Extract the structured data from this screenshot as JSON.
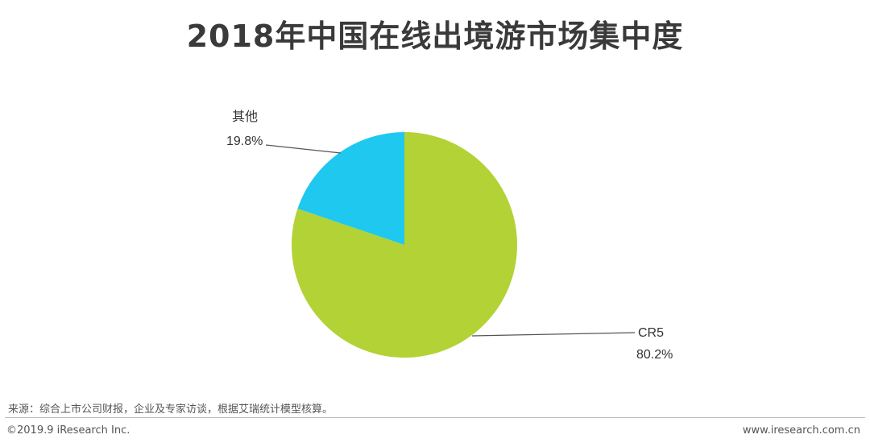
{
  "title": "2018年中国在线出境游市场集中度",
  "source": "来源：综合上市公司财报，企业及专家访谈，根据艾瑞统计模型核算。",
  "copyright": "©2019.9 iResearch Inc.",
  "website": "www.iresearch.com.cn",
  "colors": {
    "CR5": "#b2d235",
    "其他": "#1ec8ef"
  },
  "chart_data": {
    "type": "pie",
    "title": "2018年中国在线出境游市场集中度",
    "slices": [
      {
        "label": "CR5",
        "value": 80.2,
        "value_label": "80.2%"
      },
      {
        "label": "其他",
        "value": 19.8,
        "value_label": "19.8%"
      }
    ],
    "start": "12 o'clock",
    "direction": "clockwise",
    "legend": "none"
  }
}
